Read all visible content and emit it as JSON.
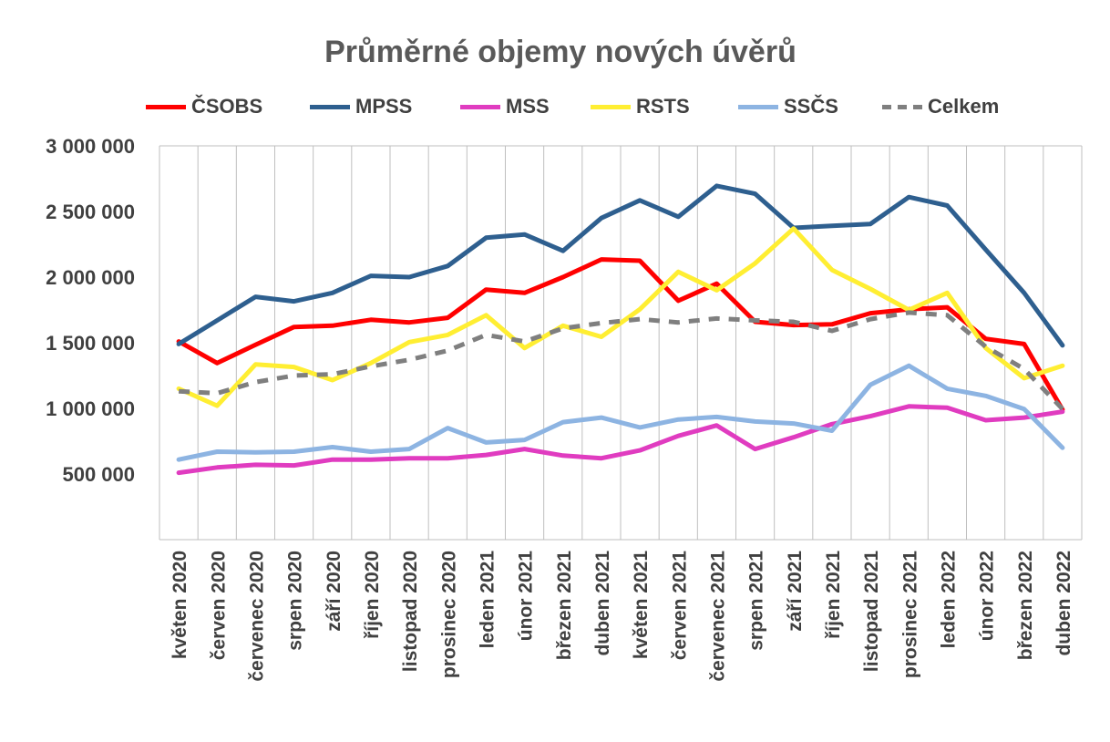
{
  "chart_data": {
    "type": "line",
    "title": "Průměrné objemy nových úvěrů",
    "xlabel": "",
    "ylabel": "",
    "ylim": [
      0,
      3000000
    ],
    "y_ticks": [
      500000,
      1000000,
      1500000,
      2000000,
      2500000,
      3000000
    ],
    "y_tick_labels": [
      "500 000",
      "1 000 000",
      "1 500 000",
      "2 000 000",
      "2 500 000",
      "3 000 000"
    ],
    "grid": "vertical",
    "legend_position": "top",
    "categories": [
      "květen 2020",
      "červen 2020",
      "červenec 2020",
      "srpen 2020",
      "září 2020",
      "říjen 2020",
      "listopad 2020",
      "prosinec 2020",
      "leden 2021",
      "únor 2021",
      "březen 2021",
      "duben 2021",
      "květen 2021",
      "červen 2021",
      "červenec 2021",
      "srpen 2021",
      "září 2021",
      "říjen 2021",
      "listopad 2021",
      "prosinec 2021",
      "leden 2022",
      "únor 2022",
      "březen 2022",
      "duben 2022"
    ],
    "series": [
      {
        "name": "ČSOBS",
        "color": "#ff0000",
        "dashed": false,
        "values": [
          1510000,
          1345000,
          1485000,
          1620000,
          1630000,
          1675000,
          1655000,
          1690000,
          1905000,
          1880000,
          2000000,
          2135000,
          2125000,
          1820000,
          1950000,
          1660000,
          1635000,
          1640000,
          1725000,
          1755000,
          1770000,
          1530000,
          1490000,
          990000
        ]
      },
      {
        "name": "MPSS",
        "color": "#2e5f8f",
        "dashed": false,
        "values": [
          1490000,
          1670000,
          1850000,
          1815000,
          1880000,
          2010000,
          2000000,
          2085000,
          2300000,
          2325000,
          2200000,
          2450000,
          2585000,
          2460000,
          2695000,
          2635000,
          2375000,
          2390000,
          2405000,
          2610000,
          2545000,
          2210000,
          1880000,
          1480000
        ]
      },
      {
        "name": "MSS",
        "color": "#e03cc0",
        "dashed": false,
        "values": [
          510000,
          550000,
          570000,
          565000,
          610000,
          610000,
          620000,
          620000,
          645000,
          690000,
          640000,
          620000,
          680000,
          790000,
          870000,
          690000,
          780000,
          880000,
          940000,
          1015000,
          1005000,
          910000,
          930000,
          975000
        ]
      },
      {
        "name": "RSTS",
        "color": "#ffee32",
        "dashed": false,
        "values": [
          1150000,
          1020000,
          1335000,
          1315000,
          1215000,
          1345000,
          1505000,
          1560000,
          1710000,
          1460000,
          1630000,
          1545000,
          1755000,
          2040000,
          1900000,
          2105000,
          2370000,
          2055000,
          1910000,
          1750000,
          1880000,
          1460000,
          1230000,
          1325000
        ]
      },
      {
        "name": "SSČS",
        "color": "#8db4e2",
        "dashed": false,
        "values": [
          610000,
          670000,
          665000,
          670000,
          705000,
          670000,
          690000,
          850000,
          740000,
          760000,
          895000,
          930000,
          855000,
          915000,
          935000,
          900000,
          885000,
          830000,
          1180000,
          1325000,
          1150000,
          1095000,
          995000,
          700000
        ]
      },
      {
        "name": "Celkem",
        "color": "#7f7f7f",
        "dashed": true,
        "values": [
          1130000,
          1115000,
          1200000,
          1250000,
          1260000,
          1320000,
          1370000,
          1440000,
          1560000,
          1510000,
          1610000,
          1650000,
          1680000,
          1655000,
          1685000,
          1670000,
          1660000,
          1590000,
          1680000,
          1730000,
          1710000,
          1470000,
          1300000,
          995000
        ]
      }
    ]
  }
}
